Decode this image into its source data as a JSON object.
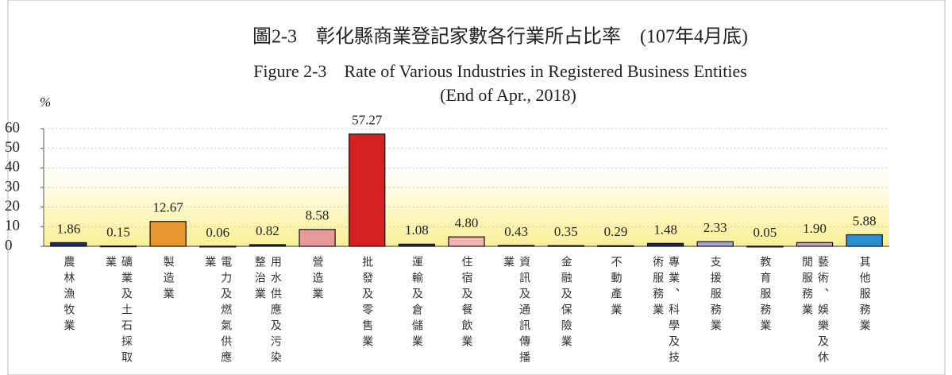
{
  "chart_data": {
    "type": "bar",
    "title": "圖2-3　彰化縣商業登記家數各行業所占比率　(107年4月底)",
    "subtitle": [
      "Figure 2-3　Rate of Various Industries in Registered Business Entities",
      "(End of Apr., 2018)"
    ],
    "y_label": "%",
    "categories": [
      "農林漁牧業",
      "礦業及土石採取業",
      "製造業",
      "電力及燃氣供應業",
      "用水供應及污染整治業",
      "營造業",
      "批發及零售業",
      "運輸及倉儲業",
      "住宿及餐飲業",
      "資訊及通訊傳播業",
      "金融及保險業",
      "不動產業",
      "專業、科學及技術服務業",
      "支援服務業",
      "教育服務業",
      "藝術、娛樂及休閒服務業",
      "其他服務業"
    ],
    "values": [
      1.86,
      0.15,
      12.67,
      0.06,
      0.82,
      8.58,
      57.27,
      1.08,
      4.8,
      0.43,
      0.35,
      0.29,
      1.48,
      2.33,
      0.05,
      1.9,
      5.88
    ],
    "value_labels": [
      "1.86",
      "0.15",
      "12.67",
      "0.06",
      "0.82",
      "8.58",
      "57.27",
      "1.08",
      "4.80",
      "0.43",
      "0.35",
      "0.29",
      "1.48",
      "2.33",
      "0.05",
      "1.90",
      "5.88"
    ],
    "colors": [
      "#1f2a5e",
      "#1f2a5e",
      "#e8962e",
      "#1f2a5e",
      "#1f2a5e",
      "#e89a98",
      "#d42222",
      "#1f2a5e",
      "#f2b4b0",
      "#1f2a5e",
      "#1f2a5e",
      "#1f2a5e",
      "#1f2a5e",
      "#a4aad8",
      "#1f2a5e",
      "#c9a0c4",
      "#2b8fd0"
    ],
    "ylim": [
      0,
      60
    ],
    "yticks": [
      0,
      10,
      20,
      30,
      40,
      50,
      60
    ]
  }
}
